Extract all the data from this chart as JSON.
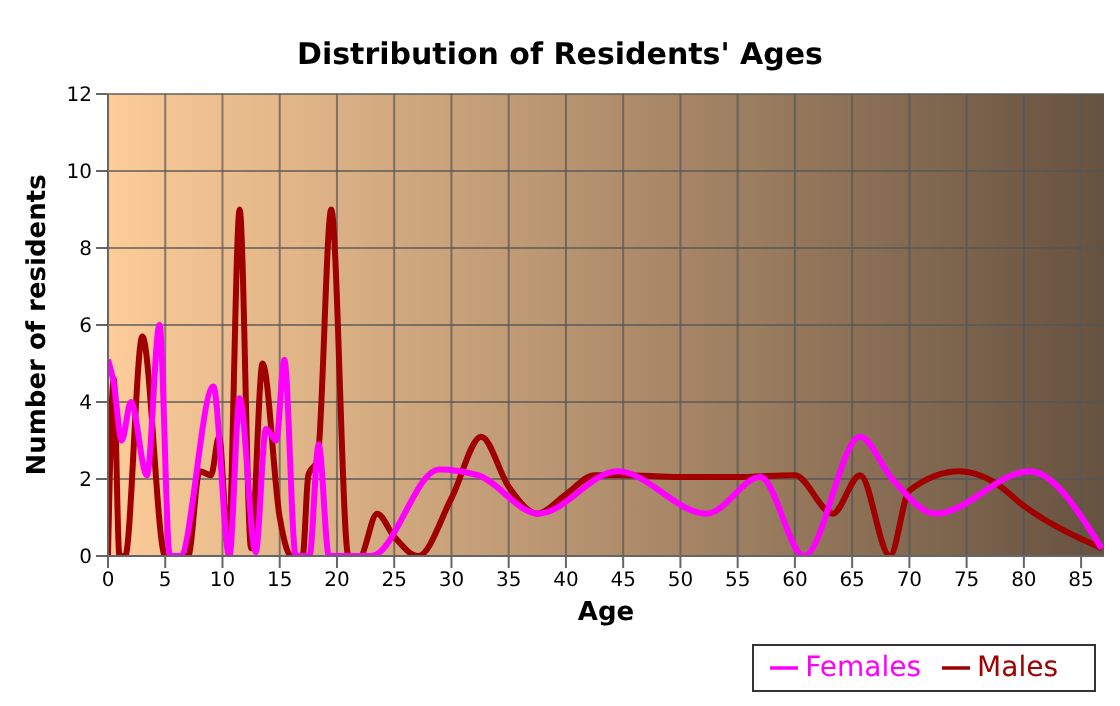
{
  "chart_data": {
    "type": "line",
    "title": "Distribution of Residents' Ages",
    "xlabel": "Age",
    "ylabel": "Number of residents",
    "xlim": [
      0,
      87
    ],
    "xticks": [
      0,
      5,
      10,
      15,
      20,
      25,
      30,
      35,
      40,
      45,
      50,
      55,
      60,
      65,
      70,
      75,
      80,
      85
    ],
    "ylim": [
      0,
      12
    ],
    "yticks": [
      0,
      2,
      4,
      6,
      8,
      10,
      12
    ],
    "grid": true,
    "legend": "bottom right",
    "marker": "none",
    "line_style": "solid",
    "series": [
      {
        "name": "Males",
        "color": "#a00000",
        "x": [
          0,
          0.5,
          1,
          1.5,
          3,
          5,
          6,
          7,
          8,
          9,
          9.7,
          10.5,
          11.5,
          12.5,
          13.5,
          15,
          16,
          17,
          17.5,
          18.3,
          19.5,
          21,
          22,
          23.5,
          25,
          27.1,
          30,
          32.6,
          35,
          37.5,
          40,
          42.5,
          45,
          50,
          55,
          60,
          63.3,
          65.7,
          68.3,
          70,
          74.4,
          77.5,
          80,
          86.8
        ],
        "values": [
          0,
          4.6,
          0,
          0,
          5.7,
          0,
          0,
          0,
          2.2,
          2.1,
          3.1,
          0.2,
          9,
          0.2,
          5,
          1,
          0,
          0,
          2.1,
          2.5,
          9,
          0,
          0,
          1.1,
          0.5,
          0,
          1.5,
          3.1,
          1.8,
          1.1,
          1.6,
          2.1,
          2.1,
          2.05,
          2.05,
          2.1,
          1.1,
          2.1,
          0,
          1.7,
          2.2,
          1.9,
          1.3,
          0.2
        ]
      },
      {
        "name": "Females",
        "color": "#ff00ff",
        "x": [
          0,
          0.5,
          1.2,
          2,
          3.4,
          4.5,
          5.4,
          6.3,
          9.2,
          10.6,
          11.5,
          12.9,
          13.8,
          14.7,
          15.4,
          16.4,
          17.6,
          18.4,
          19.3,
          23,
          28.9,
          32.3,
          37.6,
          44.5,
          52.3,
          57,
          60.8,
          65.7,
          68.5,
          72.3,
          80.5,
          86.8
        ],
        "values": [
          5.1,
          4.5,
          3,
          4,
          2.1,
          6,
          0,
          0,
          4.4,
          0,
          4.1,
          0.1,
          3.3,
          3,
          5.1,
          0,
          0,
          2.9,
          0,
          0,
          2.25,
          2.1,
          1.1,
          2.2,
          1.1,
          2.05,
          0,
          3.1,
          2,
          1.1,
          2.2,
          0.2
        ]
      }
    ]
  }
}
